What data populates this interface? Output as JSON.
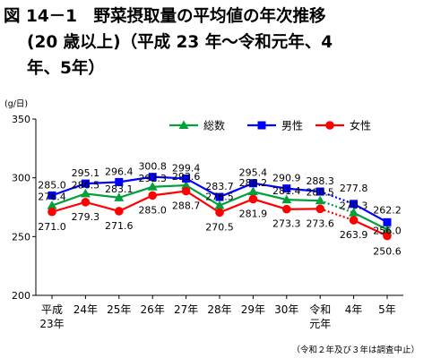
{
  "title_lines": [
    "図 14－1　野菜摂取量の平均値の年次推移",
    "(20 歳以上)（平成 23 年～令和元年、4",
    "年、5年）"
  ],
  "footnote": "（令和２年及び３年は調査中止）",
  "chart_data": {
    "type": "line",
    "ylabel": "(g/日)",
    "ylim": [
      200,
      350
    ],
    "yticks": [
      "200",
      "250",
      "300",
      "350"
    ],
    "grid": false,
    "legend_position": "top-center",
    "categories": [
      [
        "平成",
        "23年"
      ],
      [
        "24年"
      ],
      [
        "25年"
      ],
      [
        "26年"
      ],
      [
        "27年"
      ],
      [
        "28年"
      ],
      [
        "29年"
      ],
      [
        "30年"
      ],
      [
        "令和",
        "元年"
      ],
      [
        "4年"
      ],
      [
        "5年"
      ]
    ],
    "gap_after_index": 8,
    "series": [
      {
        "name": "総数",
        "color": "#00a03c",
        "marker": "triangle",
        "values": [
          276.4,
          286.5,
          283.1,
          292.3,
          293.6,
          276.5,
          288.2,
          281.4,
          280.5,
          270.3,
          256.0
        ],
        "labels": [
          "276.4",
          "286.5",
          "283.1",
          "292.3",
          "293.6",
          "276.5",
          "288.2",
          "281.4",
          "280.5",
          "270.3",
          "256.0"
        ]
      },
      {
        "name": "男性",
        "color": "#0000ff",
        "marker": "square",
        "values": [
          285.0,
          295.1,
          296.4,
          300.8,
          299.4,
          283.7,
          295.4,
          290.9,
          288.3,
          277.8,
          262.2
        ],
        "labels": [
          "285.0",
          "295.1",
          "296.4",
          "300.8",
          "299.4",
          "283.7",
          "295.4",
          "290.9",
          "288.3",
          "277.8",
          "262.2"
        ]
      },
      {
        "name": "女性",
        "color": "#ff0000",
        "marker": "circle",
        "values": [
          271.0,
          279.3,
          271.6,
          285.0,
          288.7,
          270.5,
          281.9,
          273.3,
          273.6,
          263.9,
          250.6
        ],
        "labels": [
          "271.0",
          "279.3",
          "271.6",
          "285.0",
          "288.7",
          "270.5",
          "281.9",
          "273.3",
          "273.6",
          "263.9",
          "250.6"
        ]
      }
    ]
  }
}
